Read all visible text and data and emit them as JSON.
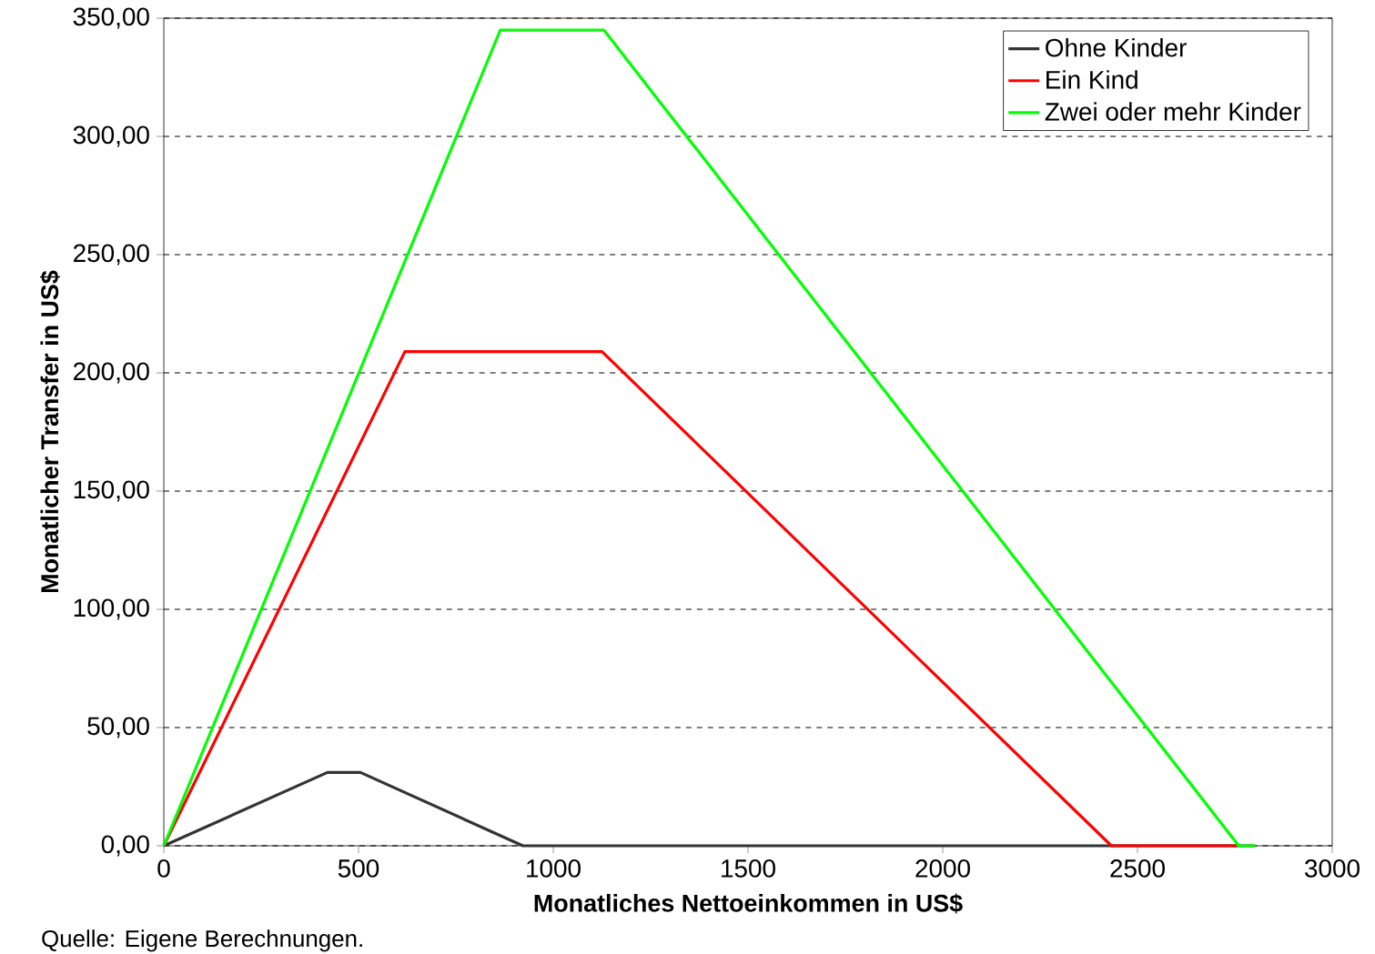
{
  "chart_data": {
    "type": "line",
    "xlabel": "Monatliches Nettoeinkommen in US$",
    "ylabel": "Monatlicher Transfer in US$",
    "annotations": [
      "Quelle: Eigene Berechnungen."
    ],
    "series": [
      {
        "name": "Ohne Kinder",
        "color": "#333333",
        "x": [
          0,
          420,
          505,
          922,
          2800
        ],
        "values": [
          0,
          31,
          31,
          0,
          0
        ]
      },
      {
        "name": "Ein Kind",
        "color": "#ff0000",
        "x": [
          0,
          619,
          1125,
          2433,
          2755
        ],
        "values": [
          0,
          209,
          209,
          0,
          0
        ]
      },
      {
        "name": "Zwei oder mehr Kinder",
        "color": "#00ff00",
        "x": [
          0,
          864,
          1130,
          2760,
          2802
        ],
        "values": [
          0,
          345,
          345,
          0,
          0
        ]
      }
    ],
    "xlim": [
      0,
      3000
    ],
    "ylim": [
      0,
      350
    ],
    "xticks": [
      0,
      500,
      1000,
      1500,
      2000,
      2500,
      3000
    ],
    "yticks": [
      {
        "value": 0,
        "label": "0,00"
      },
      {
        "value": 50,
        "label": "50,00"
      },
      {
        "value": 100,
        "label": "100,00"
      },
      {
        "value": 150,
        "label": "150,00"
      },
      {
        "value": 200,
        "label": "200,00"
      },
      {
        "value": 250,
        "label": "250,00"
      },
      {
        "value": 300,
        "label": "300,00"
      },
      {
        "value": 350,
        "label": "350,00"
      }
    ],
    "grid": "y",
    "legend": "top right",
    "line_style": "solid",
    "marker": "none"
  }
}
